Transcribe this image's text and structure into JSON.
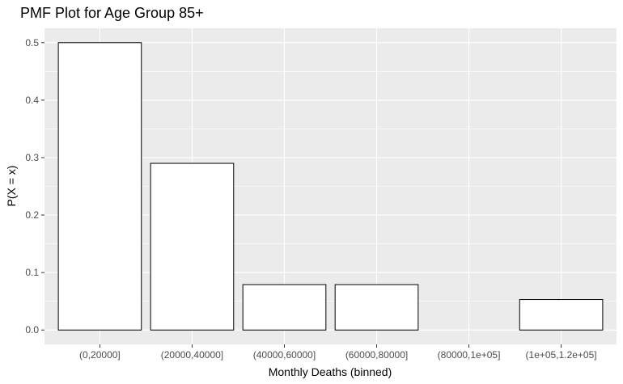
{
  "chart_data": {
    "type": "bar",
    "title": "PMF Plot for Age Group 85+",
    "xlabel": "Monthly Deaths (binned)",
    "ylabel": "P(X = x)",
    "categories": [
      "(0,20000]",
      "(20000,40000]",
      "(40000,60000]",
      "(60000,80000]",
      "(80000,1e+05]",
      "(1e+05,1.2e+05]"
    ],
    "values": [
      0.5,
      0.29,
      0.079,
      0.079,
      0.0,
      0.053
    ],
    "yticks": [
      "0.0",
      "0.1",
      "0.2",
      "0.3",
      "0.4",
      "0.5"
    ],
    "ylim": [
      -0.025,
      0.525
    ],
    "grid": true,
    "legend": "none",
    "colors": {
      "panel": "#ebebeb",
      "grid_major": "#ffffff",
      "bar_fill": "#ffffff",
      "bar_stroke": "#000000"
    }
  }
}
